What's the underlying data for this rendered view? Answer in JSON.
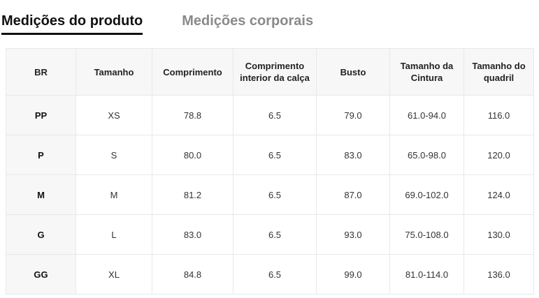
{
  "tabs": [
    {
      "label": "Medições do produto",
      "active": true
    },
    {
      "label": "Medições corporais",
      "active": false
    }
  ],
  "table": {
    "headers": [
      "BR",
      "Tamanho",
      "Comprimento",
      "Comprimento interior da calça",
      "Busto",
      "Tamanho da Cintura",
      "Tamanho do quadril"
    ],
    "rows": [
      [
        "PP",
        "XS",
        "78.8",
        "6.5",
        "79.0",
        "61.0-94.0",
        "116.0"
      ],
      [
        "P",
        "S",
        "80.0",
        "6.5",
        "83.0",
        "65.0-98.0",
        "120.0"
      ],
      [
        "M",
        "M",
        "81.2",
        "6.5",
        "87.0",
        "69.0-102.0",
        "124.0"
      ],
      [
        "G",
        "L",
        "83.0",
        "6.5",
        "93.0",
        "75.0-108.0",
        "130.0"
      ],
      [
        "GG",
        "XL",
        "84.8",
        "6.5",
        "99.0",
        "81.0-114.0",
        "136.0"
      ]
    ]
  },
  "colors": {
    "tab_active": "#111111",
    "tab_inactive": "#8a8a8a",
    "tab_underline": "#111111",
    "header_bg": "#f7f7f8",
    "row_header_bg": "#f7f7f8",
    "border": "#e8e8e8",
    "text": "#222222"
  }
}
